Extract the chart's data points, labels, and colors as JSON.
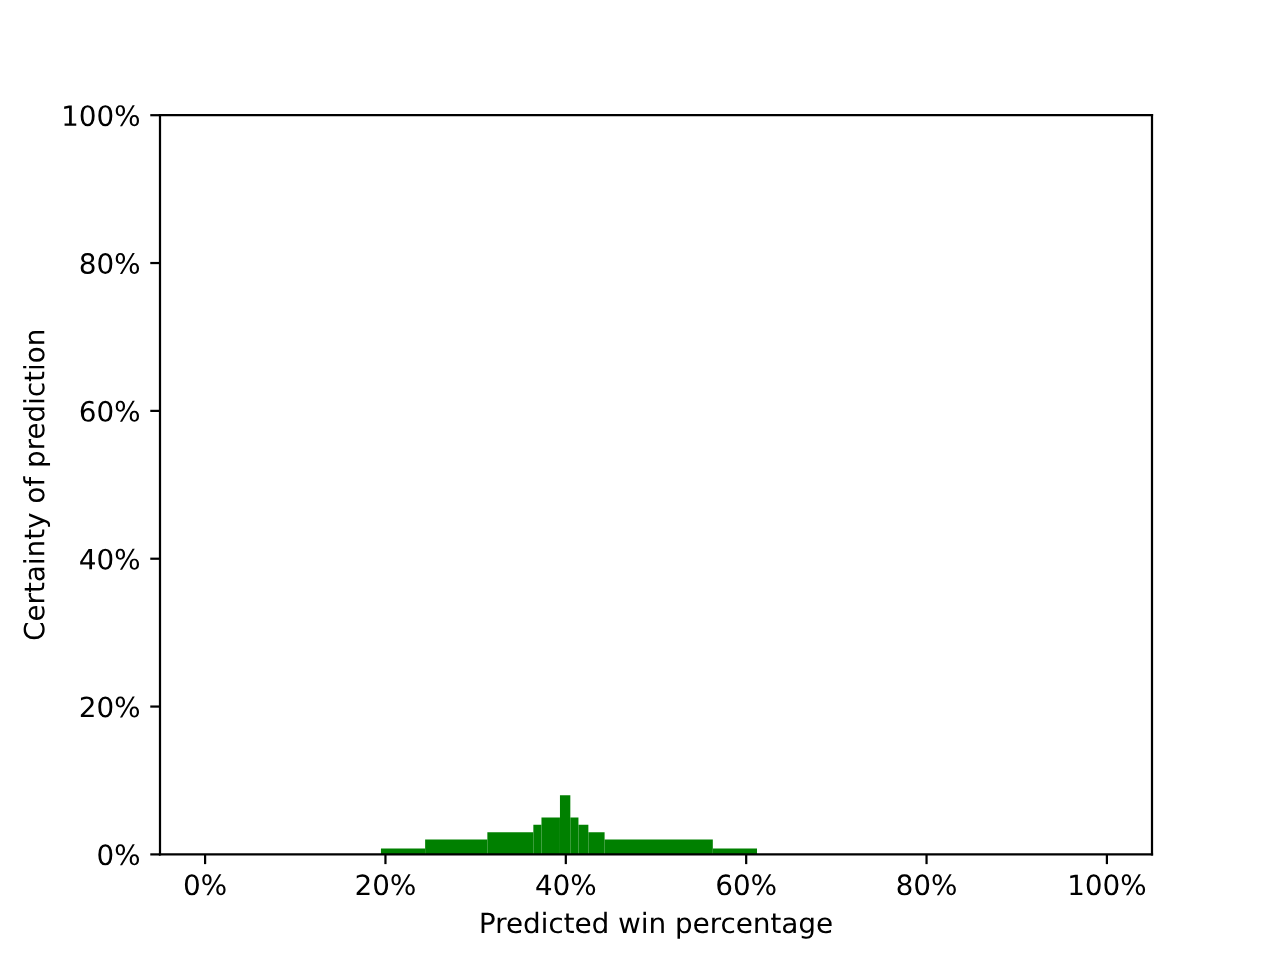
{
  "chart_data": {
    "type": "histogram",
    "xlabel": "Predicted win percentage",
    "ylabel": "Certainty of prediction",
    "color": "#008000",
    "bins": [
      19.5,
      24.4,
      31.3,
      36.4,
      37.3,
      39.35,
      40.5,
      41.4,
      42.5,
      44.3,
      56.3,
      61.2
    ],
    "values": [
      0.8,
      2,
      3,
      4,
      5,
      8,
      5,
      4,
      3,
      2,
      0.8
    ],
    "xlim": [
      -5,
      105
    ],
    "ylim": [
      0,
      100
    ],
    "xticks": [
      {
        "value": 0,
        "label": "0%"
      },
      {
        "value": 20,
        "label": "20%"
      },
      {
        "value": 40,
        "label": "40%"
      },
      {
        "value": 60,
        "label": "60%"
      },
      {
        "value": 80,
        "label": "80%"
      },
      {
        "value": 100,
        "label": "100%"
      }
    ],
    "yticks": [
      {
        "value": 0,
        "label": "0%"
      },
      {
        "value": 20,
        "label": "20%"
      },
      {
        "value": 40,
        "label": "40%"
      },
      {
        "value": 60,
        "label": "60%"
      },
      {
        "value": 80,
        "label": "80%"
      },
      {
        "value": 100,
        "label": "100%"
      }
    ],
    "grid": false
  }
}
